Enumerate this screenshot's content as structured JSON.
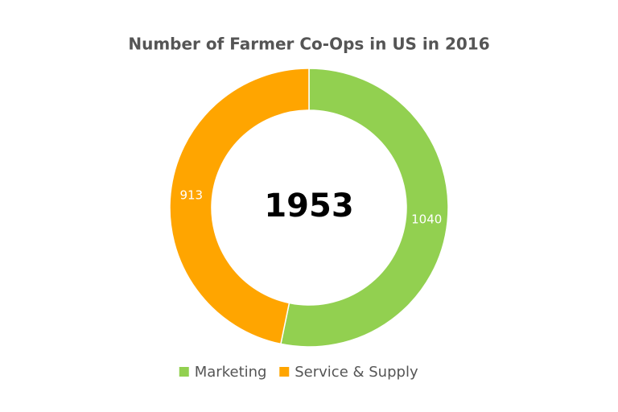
{
  "chart_data": {
    "type": "donut",
    "title": "Number of Farmer Co-Ops in US in 2016",
    "categories": [
      "Marketing",
      "Service & Supply"
    ],
    "values": [
      1040,
      913
    ],
    "colors": [
      "#92d050",
      "#ffa500"
    ],
    "center_label": 1953,
    "legend": "bottom"
  }
}
